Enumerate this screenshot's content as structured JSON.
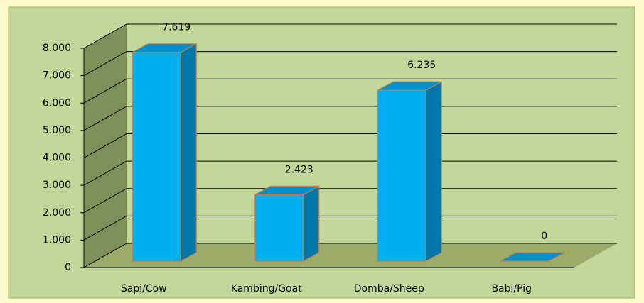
{
  "chart_data": {
    "type": "bar3d",
    "categories": [
      "Sapi/Cow",
      "Kambing/Goat",
      "Domba/Sheep",
      "Babi/Pig"
    ],
    "values": [
      7619,
      2423,
      6235,
      0
    ],
    "value_labels": [
      "7.619",
      "2.423",
      "6.235",
      "0"
    ],
    "color": "#00b0f0",
    "ylim": [
      0,
      8000
    ],
    "yticks": [
      0,
      {
        "value": 1000,
        "label": "1.000"
      },
      {
        "value": 2000,
        "label": "2.000"
      },
      {
        "value": 3000,
        "label": "3.000"
      },
      {
        "value": 4000,
        "label": "4.000"
      },
      {
        "value": 5000,
        "label": "5.000"
      },
      {
        "value": 6000,
        "label": "6.000"
      },
      {
        "value": 7000,
        "label": "7.000"
      },
      {
        "value": 8000,
        "label": "8.000"
      }
    ],
    "grid": true
  }
}
